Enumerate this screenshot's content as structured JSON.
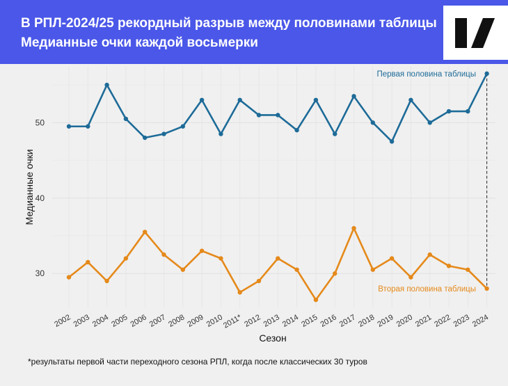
{
  "header": {
    "title": "В РПЛ-2024/25 рекордный разрыв между половинами таблицы",
    "subtitle": "Медианные очки каждой восьмерки"
  },
  "footnote": "*результаты первой части переходного сезона РПЛ, когда после классических 30 туров",
  "colors": {
    "header_bg": "#4a57e8",
    "top_series": "#1d6b98",
    "bottom_series": "#e5891a",
    "background": "#f0f0f0"
  },
  "chart_data": {
    "type": "line",
    "xlabel": "Сезон",
    "ylabel": "Медианные очки",
    "ylim": [
      25.5,
      57.5
    ],
    "yticks": [
      30,
      40,
      50
    ],
    "grid": true,
    "categories": [
      "2002",
      "2003",
      "2004",
      "2005",
      "2006",
      "2007",
      "2008",
      "2009",
      "2010",
      "2011*",
      "2012",
      "2013",
      "2014",
      "2015",
      "2016",
      "2017",
      "2018",
      "2019",
      "2020",
      "2021",
      "2022",
      "2023",
      "2024"
    ],
    "series": [
      {
        "name": "Первая половина таблицы",
        "color": "#1d6b98",
        "values": [
          49.5,
          49.5,
          55,
          50.5,
          48,
          48.5,
          49.5,
          53,
          48.5,
          53,
          51,
          51,
          49,
          53,
          48.5,
          53.5,
          50,
          47.5,
          53,
          50,
          51.5,
          51.5,
          56.5
        ]
      },
      {
        "name": "Вторая половина таблицы",
        "color": "#e5891a",
        "values": [
          29.5,
          31.5,
          29,
          32,
          35.5,
          32.5,
          30.5,
          33,
          32,
          27.5,
          29,
          32,
          30.5,
          26.5,
          30,
          36,
          30.5,
          32,
          29.5,
          32.5,
          31,
          30.5,
          28
        ]
      }
    ],
    "annotation": "dashed line between both series in 2024"
  }
}
